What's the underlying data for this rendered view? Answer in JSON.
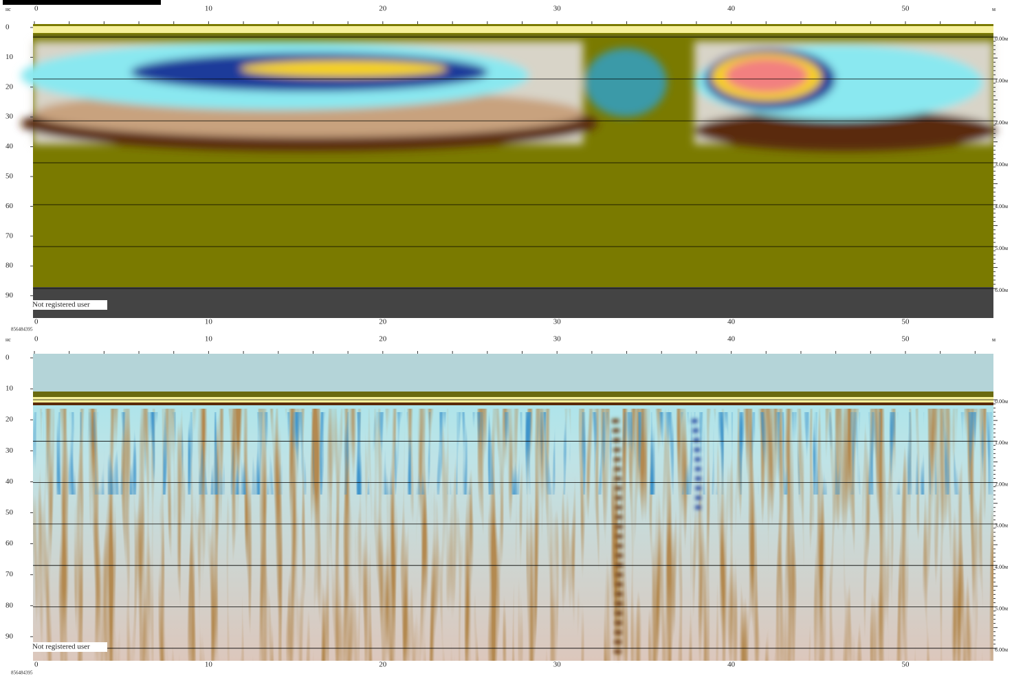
{
  "panels": [
    {
      "y_unit": "нс",
      "x_unit": "м",
      "x_labels_top": [
        "0",
        "10",
        "20",
        "30",
        "40",
        "50"
      ],
      "x_labels_bottom": [
        "0",
        "10",
        "20",
        "30",
        "40",
        "50"
      ],
      "y_labels": [
        "0",
        "10",
        "20",
        "30",
        "40",
        "50",
        "60",
        "70",
        "80",
        "90"
      ],
      "depth_labels": [
        "0.00м",
        "1.00м",
        "2.00м",
        "3.00м",
        "4.00м",
        "5.00м",
        "6.00м"
      ],
      "watermark": "Not registered user",
      "serial": "856484395"
    },
    {
      "y_unit": "нс",
      "x_unit": "м",
      "x_labels_top": [
        "0",
        "10",
        "20",
        "30",
        "40",
        "50"
      ],
      "x_labels_bottom": [
        "0",
        "10",
        "20",
        "30",
        "40",
        "50"
      ],
      "y_labels": [
        "0",
        "10",
        "20",
        "30",
        "40",
        "50",
        "60",
        "70",
        "80",
        "90"
      ],
      "depth_labels": [
        "0.00м",
        "1.00м",
        "2.00м",
        "3.00м",
        "4.00м",
        "5.00м",
        "6.00м"
      ],
      "watermark": "Not registered user",
      "serial": "856484395"
    }
  ]
}
